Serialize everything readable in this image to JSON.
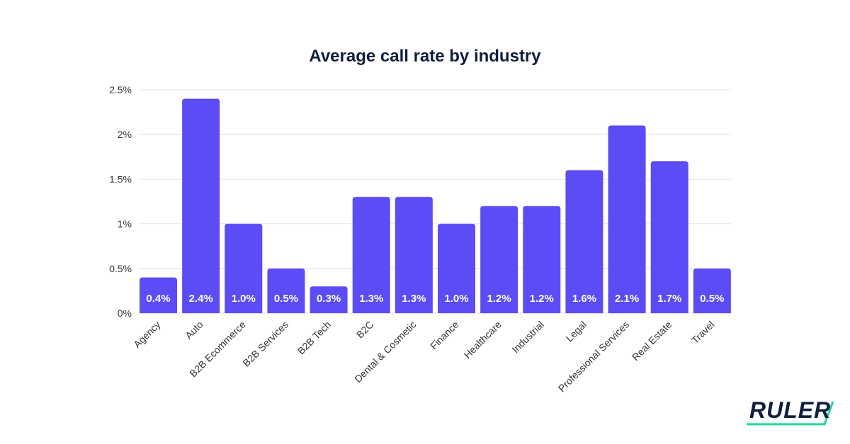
{
  "chart_data": {
    "type": "bar",
    "title": "Average call rate by industry",
    "xlabel": "",
    "ylabel": "",
    "categories": [
      "Agency",
      "Auto",
      "B2B Ecommerce",
      "B2B Services",
      "B2B Tech",
      "B2C",
      "Dental & Cosmetic",
      "Finance",
      "Healthcare",
      "Industrial",
      "Legal",
      "Professional Services",
      "Real Estate",
      "Travel"
    ],
    "values": [
      0.4,
      2.4,
      1.0,
      0.5,
      0.3,
      1.3,
      1.3,
      1.0,
      1.2,
      1.2,
      1.6,
      2.1,
      1.7,
      0.5
    ],
    "data_labels": [
      "0.4%",
      "2.4%",
      "1.0%",
      "0.5%",
      "0.3%",
      "1.3%",
      "1.3%",
      "1.0%",
      "1.2%",
      "1.2%",
      "1.6%",
      "2.1%",
      "1.7%",
      "0.5%"
    ],
    "ylim": [
      0,
      2.5
    ],
    "yticks": [
      0,
      0.5,
      1,
      1.5,
      2,
      2.5
    ],
    "ytick_labels": [
      "0%",
      "0.5%",
      "1%",
      "1.5%",
      "2%",
      "2.5%"
    ],
    "grid": true,
    "legend": "none",
    "colors": {
      "bar": "#5b4cf5",
      "title": "#0f1e3d",
      "grid": "#e3e3e3",
      "label": "#ffffff"
    }
  },
  "logo": {
    "text": "RULER",
    "accent": "#1ed6a0"
  }
}
